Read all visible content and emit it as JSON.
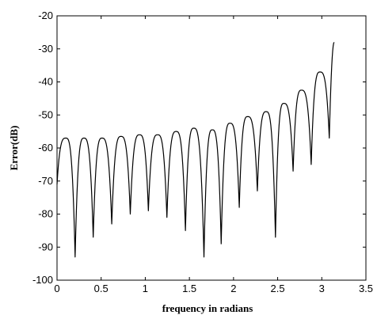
{
  "chart_data": {
    "type": "line",
    "xlabel": "frequency in radians",
    "ylabel": "Error(dB)",
    "xlim": [
      0,
      3.5
    ],
    "ylim": [
      -100,
      -20
    ],
    "xticks": [
      0,
      0.5,
      1,
      1.5,
      2,
      2.5,
      3,
      3.5
    ],
    "yticks": [
      -100,
      -90,
      -80,
      -70,
      -60,
      -50,
      -40,
      -30,
      -20
    ],
    "xtick_labels": [
      "0",
      "0.5",
      "1",
      "1.5",
      "2",
      "2.5",
      "3",
      "3.5"
    ],
    "ytick_labels": [
      "-100",
      "-90",
      "-80",
      "-70",
      "-60",
      "-50",
      "-40",
      "-30",
      "-20"
    ],
    "grid": false,
    "series": [
      {
        "start": [
          0,
          -71
        ],
        "end": [
          3.14,
          -28
        ],
        "peaks": [
          [
            0.1,
            -57
          ],
          [
            0.305,
            -57
          ],
          [
            0.51,
            -57
          ],
          [
            0.725,
            -56.5
          ],
          [
            0.935,
            -56
          ],
          [
            1.14,
            -56
          ],
          [
            1.35,
            -55
          ],
          [
            1.55,
            -54
          ],
          [
            1.76,
            -54.5
          ],
          [
            1.96,
            -52.5
          ],
          [
            2.16,
            -50.5
          ],
          [
            2.37,
            -49
          ],
          [
            2.57,
            -46.5
          ],
          [
            2.77,
            -42.5
          ],
          [
            2.98,
            -37
          ]
        ],
        "nulls": [
          [
            0.205,
            -93
          ],
          [
            0.41,
            -87
          ],
          [
            0.62,
            -83
          ],
          [
            0.83,
            -80
          ],
          [
            1.035,
            -79
          ],
          [
            1.245,
            -81
          ],
          [
            1.455,
            -85
          ],
          [
            1.665,
            -93
          ],
          [
            1.86,
            -89
          ],
          [
            2.065,
            -78
          ],
          [
            2.27,
            -73
          ],
          [
            2.475,
            -87
          ],
          [
            2.675,
            -67
          ],
          [
            2.88,
            -65
          ],
          [
            3.085,
            -57
          ]
        ]
      }
    ]
  }
}
